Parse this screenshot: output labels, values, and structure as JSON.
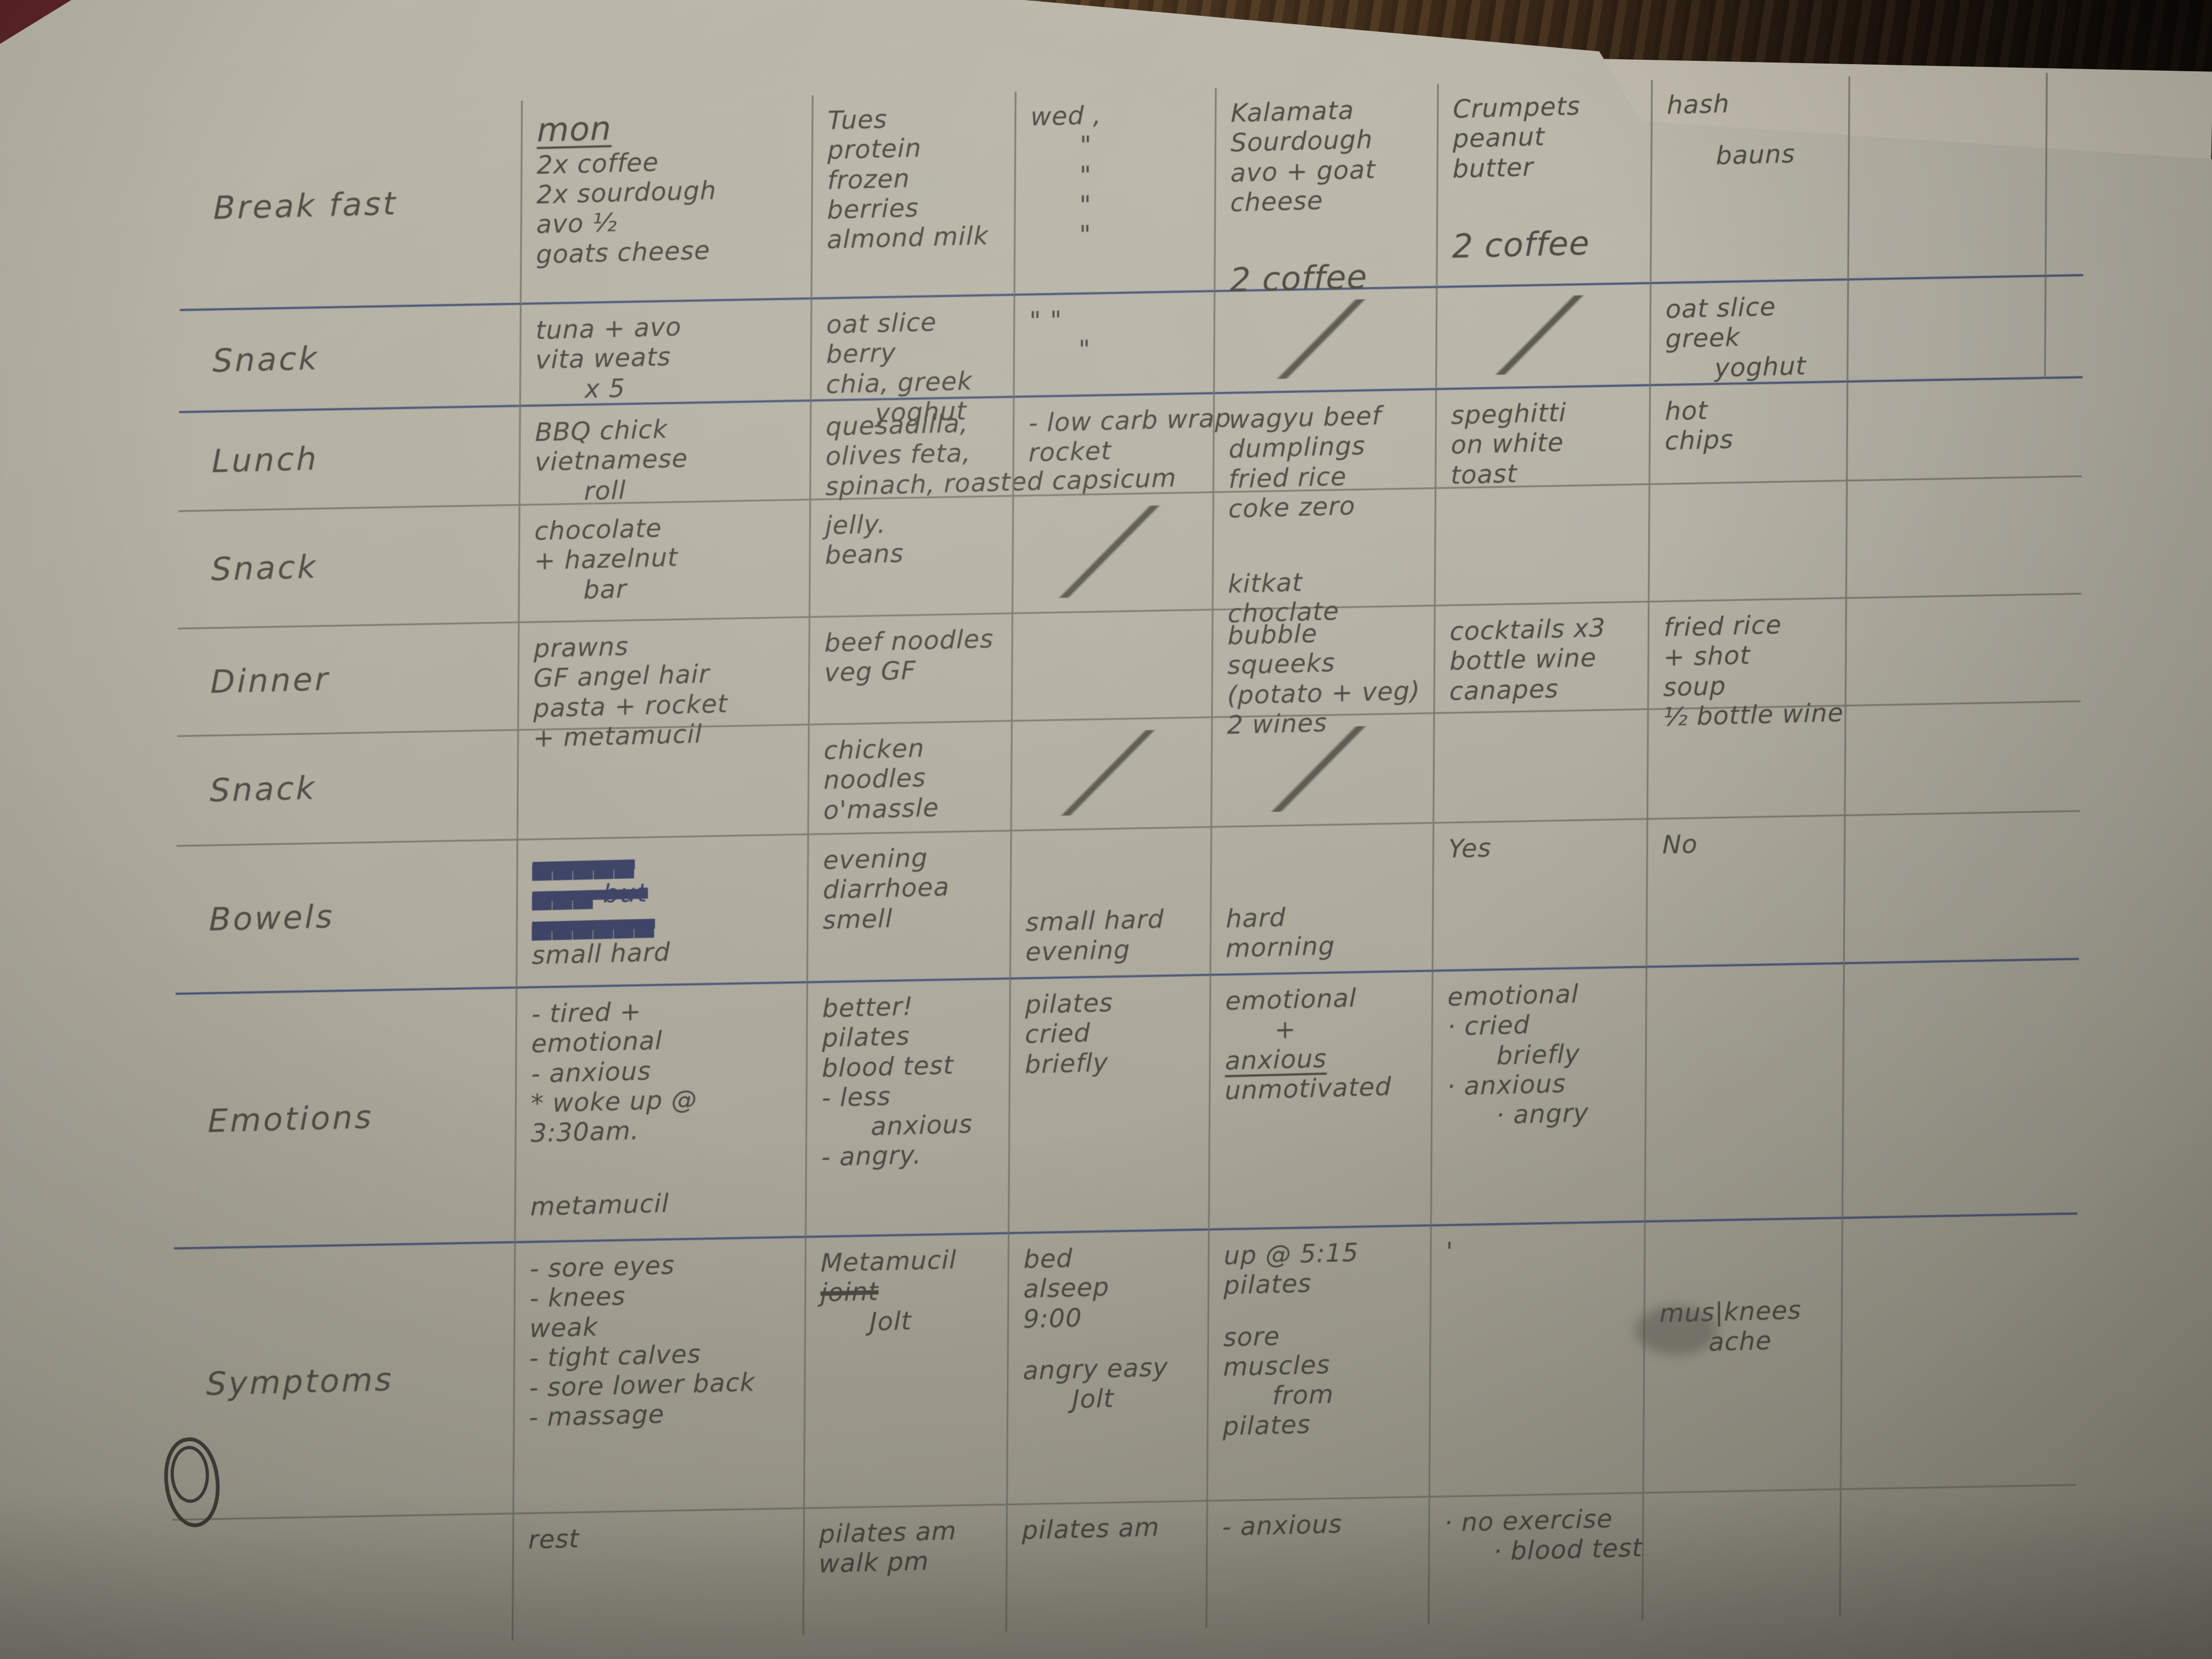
{
  "colors": {
    "paper": "#b1ada0",
    "pencil_text": "#4c4a43",
    "blue_pen": "#3c4365",
    "pencil_line": "#7b786c",
    "blue_line": "#4e5878",
    "wood_dark": "#2c1f13",
    "wood_light": "#6b4a2a"
  },
  "columns_order": [
    "mon",
    "tue",
    "wed",
    "thu",
    "fri",
    "sat",
    "sun"
  ],
  "rows": [
    {
      "key": "breakfast",
      "label": "Break fast",
      "line": "blue",
      "days": {
        "mon": {
          "lines": [
            {
              "text": "mon",
              "style": "underline big"
            },
            "2x coffee",
            "2x sourdough",
            "avo ½",
            "goats cheese"
          ]
        },
        "tue": {
          "lines": [
            "Tues",
            "protein",
            "frozen",
            "berries",
            "almond milk"
          ]
        },
        "wed": {
          "lines": [
            "wed ,",
            {
              "text": "\"",
              "style": "indent"
            },
            {
              "text": "\"",
              "style": "indent"
            },
            {
              "text": "\"",
              "style": "indent"
            },
            {
              "text": "\"",
              "style": "indent"
            }
          ]
        },
        "thu": {
          "lines": [
            "Kalamata",
            "Sourdough",
            "avo + goat",
            "cheese",
            {
              "text": "2 coffee",
              "style": "gap big"
            }
          ]
        },
        "fri": {
          "lines": [
            "Crumpets",
            "peanut",
            "butter",
            {
              "text": "2 coffee",
              "style": "gap big"
            }
          ]
        },
        "sat": {
          "lines": [
            "hash",
            {
              "text": "bauns",
              "style": "gap-sm indent"
            }
          ]
        }
      }
    },
    {
      "key": "snack-am",
      "label": "Snack",
      "line": "blue",
      "days": {
        "mon": {
          "lines": [
            "tuna + avo",
            "vita weats",
            {
              "text": "x 5",
              "style": "indent"
            }
          ]
        },
        "tue": {
          "lines": [
            "oat slice",
            "berry",
            "chia, greek",
            {
              "text": "yoghut",
              "style": "indent"
            }
          ]
        },
        "wed": {
          "lines": [
            "\"   \"",
            {
              "text": "\"",
              "style": "indent"
            }
          ]
        },
        "thu": {
          "mark": "slash"
        },
        "fri": {
          "mark": "slash"
        },
        "sat": {
          "lines": [
            "oat slice",
            "greek",
            {
              "text": "yoghut",
              "style": "indent"
            }
          ]
        }
      }
    },
    {
      "key": "lunch",
      "label": "Lunch",
      "line": "pencil",
      "days": {
        "mon": {
          "lines": [
            "BBQ chick",
            "vietnamese",
            {
              "text": "roll",
              "style": "indent"
            }
          ]
        },
        "tue": {
          "lines": [
            "quesadilla,",
            "olives feta,",
            "spinach, roasted capsicum"
          ]
        },
        "wed": {
          "lines": [
            "- low carb wrap",
            "rocket"
          ]
        },
        "thu": {
          "lines": [
            "wagyu beef",
            "dumplings",
            "fried rice",
            "coke zero"
          ]
        },
        "fri": {
          "lines": [
            "speghitti",
            "on white",
            "toast"
          ]
        },
        "sat": {
          "lines": [
            "hot",
            "chips"
          ]
        }
      }
    },
    {
      "key": "snack-pm",
      "label": "Snack",
      "line": "pencil",
      "days": {
        "mon": {
          "lines": [
            "chocolate",
            "+ hazelnut",
            {
              "text": "bar",
              "style": "indent"
            }
          ]
        },
        "tue": {
          "lines": [
            "jelly.",
            "beans"
          ]
        },
        "wed": {
          "mark": "slash"
        },
        "thu": {
          "lines": [
            {
              "text": "kitkat",
              "style": "low"
            },
            "choclate"
          ]
        }
      }
    },
    {
      "key": "dinner",
      "label": "Dinner",
      "line": "pencil",
      "days": {
        "mon": {
          "lines": [
            "prawns",
            "GF angel hair",
            "pasta + rocket",
            "+ metamucil"
          ]
        },
        "tue": {
          "lines": [
            "beef noodles",
            "veg GF"
          ]
        },
        "thu": {
          "lines": [
            "bubble",
            "squeeks",
            "(potato + veg)",
            "2 wines"
          ]
        },
        "fri": {
          "lines": [
            "cocktails x3",
            "bottle wine",
            "canapes"
          ]
        },
        "sat": {
          "lines": [
            "fried rice",
            "+ shot",
            "soup",
            "½ bottle wine"
          ]
        }
      }
    },
    {
      "key": "snack-eve",
      "label": "Snack",
      "line": "pencil",
      "days": {
        "tue": {
          "lines": [
            "chicken",
            "noodles",
            "o'massle"
          ]
        },
        "wed": {
          "mark": "slash"
        },
        "thu": {
          "mark": "slash"
        }
      }
    },
    {
      "key": "bowels",
      "label": "Bowels",
      "line": "blue",
      "days": {
        "mon": {
          "lines": [
            {
              "text": "▄▄▄▄▄",
              "style": "scribble"
            },
            {
              "text": "▄▄▄ but",
              "style": "scribble"
            },
            {
              "text": "▄▄▄▄▄▄",
              "style": "scribble"
            },
            "small hard"
          ]
        },
        "tue": {
          "lines": [
            "evening",
            "diarrhoea",
            "smell"
          ]
        },
        "wed": {
          "lines": [
            {
              "text": "small hard",
              "style": "low"
            },
            "evening"
          ]
        },
        "thu": {
          "lines": [
            {
              "text": "hard",
              "style": "low"
            },
            "morning"
          ]
        },
        "fri": {
          "lines": [
            "Yes"
          ]
        },
        "sat": {
          "lines": [
            "No"
          ]
        }
      }
    },
    {
      "key": "emotions",
      "label": "Emotions",
      "line": "blue",
      "days": {
        "mon": {
          "lines": [
            "- tired +",
            "emotional",
            "- anxious",
            "* woke up @",
            "3:30am.",
            {
              "text": "metamucil",
              "style": "gap"
            }
          ]
        },
        "tue": {
          "lines": [
            "better!",
            "pilates",
            "blood test",
            "- less",
            {
              "text": "anxious",
              "style": "indent"
            },
            "- angry."
          ]
        },
        "wed": {
          "lines": [
            "pilates",
            "cried",
            "briefly"
          ]
        },
        "thu": {
          "lines": [
            "emotional",
            {
              "text": "+",
              "style": "indent"
            },
            {
              "text": "anxious",
              "style": "underline"
            },
            "unmotivated"
          ]
        },
        "fri": {
          "lines": [
            "emotional",
            "· cried",
            {
              "text": "briefly",
              "style": "indent"
            },
            "· anxious",
            {
              "text": "· angry",
              "style": "indent"
            }
          ]
        }
      }
    },
    {
      "key": "symptoms",
      "label": "Symptoms",
      "line": "pencil",
      "days": {
        "mon": {
          "lines": [
            "- sore eyes",
            "- knees",
            "weak",
            "- tight calves",
            "- sore lower back",
            "- massage"
          ]
        },
        "tue": {
          "lines": [
            "Metamucil",
            {
              "text": "joint",
              "style": "strike"
            },
            {
              "text": "Jolt",
              "style": "indent"
            }
          ]
        },
        "wed": {
          "lines": [
            "bed",
            "alseep",
            "9:00",
            {
              "text": "angry easy",
              "style": "gap-sm"
            },
            {
              "text": "Jolt",
              "style": "indent"
            }
          ]
        },
        "thu": {
          "lines": [
            "up @ 5:15",
            "pilates",
            {
              "text": "sore",
              "style": "gap-sm"
            },
            "muscles",
            {
              "text": "from",
              "style": "indent"
            },
            "pilates"
          ]
        },
        "fri": {
          "lines": [
            "'"
          ]
        },
        "sat": {
          "lines": [
            {
              "text": "mus|knees",
              "style": "low"
            },
            {
              "text": "ache",
              "style": "indent"
            }
          ]
        }
      }
    },
    {
      "key": "notes",
      "label": "",
      "line": "none",
      "days": {
        "mon": {
          "lines": [
            "rest"
          ]
        },
        "tue": {
          "lines": [
            "pilates am",
            "walk pm"
          ]
        },
        "wed": {
          "lines": [
            "pilates am"
          ]
        },
        "thu": {
          "lines": [
            "- anxious"
          ]
        },
        "fri": {
          "lines": [
            "· no exercise",
            {
              "text": "· blood test",
              "style": "indent"
            }
          ]
        }
      }
    }
  ]
}
